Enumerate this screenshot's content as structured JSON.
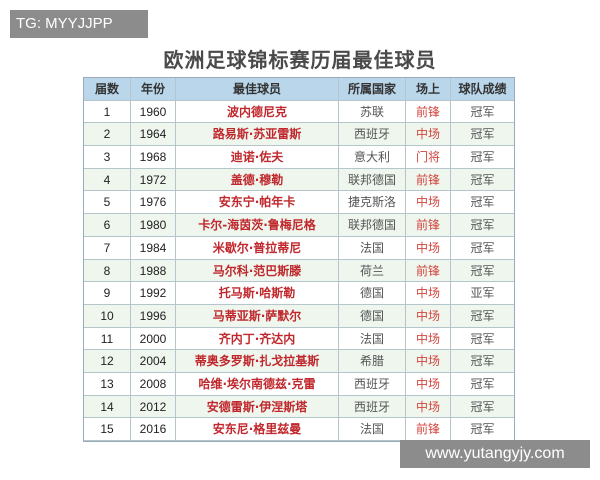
{
  "tag": "TG: MYYJJPP",
  "title": "欧洲足球锦标赛历届最佳球员",
  "table": {
    "header": [
      "届数",
      "年份",
      "最佳球员",
      "所属国家",
      "场上",
      "球队成绩"
    ],
    "rows": [
      [
        "1",
        "1960",
        "波内德尼克",
        "苏联",
        "前锋",
        "冠军"
      ],
      [
        "2",
        "1964",
        "路易斯·苏亚雷斯",
        "西班牙",
        "中场",
        "冠军"
      ],
      [
        "3",
        "1968",
        "迪诺·佐夫",
        "意大利",
        "门将",
        "冠军"
      ],
      [
        "4",
        "1972",
        "盖德·穆勒",
        "联邦德国",
        "前锋",
        "冠军"
      ],
      [
        "5",
        "1976",
        "安东宁·帕年卡",
        "捷克斯洛",
        "中场",
        "冠军"
      ],
      [
        "6",
        "1980",
        "卡尔-海茵茨·鲁梅尼格",
        "联邦德国",
        "前锋",
        "冠军"
      ],
      [
        "7",
        "1984",
        "米歇尔·普拉蒂尼",
        "法国",
        "中场",
        "冠军"
      ],
      [
        "8",
        "1988",
        "马尔科·范巴斯滕",
        "荷兰",
        "前锋",
        "冠军"
      ],
      [
        "9",
        "1992",
        "托马斯·哈斯勒",
        "德国",
        "中场",
        "亚军"
      ],
      [
        "10",
        "1996",
        "马蒂亚斯·萨默尔",
        "德国",
        "中场",
        "冠军"
      ],
      [
        "11",
        "2000",
        "齐内丁·齐达内",
        "法国",
        "中场",
        "冠军"
      ],
      [
        "12",
        "2004",
        "蒂奥多罗斯·扎戈拉基斯",
        "希腊",
        "中场",
        "冠军"
      ],
      [
        "13",
        "2008",
        "哈维·埃尔南德兹·克雷",
        "西班牙",
        "中场",
        "冠军"
      ],
      [
        "14",
        "2012",
        "安德雷斯·伊涅斯塔",
        "西班牙",
        "中场",
        "冠军"
      ],
      [
        "15",
        "2016",
        "安东尼·格里兹曼",
        "法国",
        "前锋",
        "冠军"
      ]
    ]
  },
  "watermark": "www.yutangyjy.com"
}
